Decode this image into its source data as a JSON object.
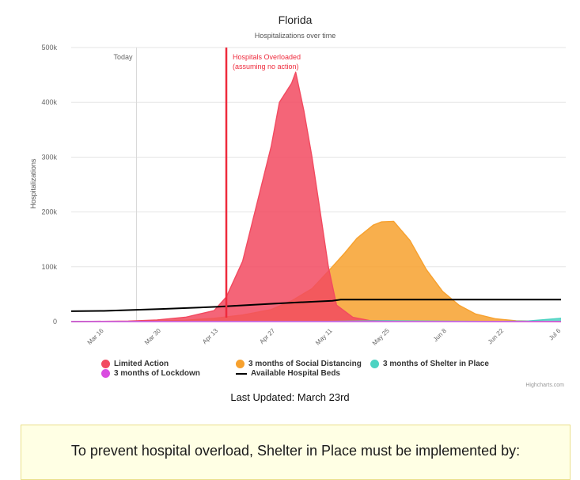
{
  "colors": {
    "limited_action": "#f24a60",
    "social_distancing": "#f7a12e",
    "shelter_in_place": "#4cd3c2",
    "lockdown": "#d94de0",
    "hospital_beds": "#000000",
    "overload_line": "#ee2a3c",
    "today_line": "#d8d8d8",
    "grid": "#e6e6e6"
  },
  "chart_data": {
    "type": "area",
    "title": "Florida",
    "subtitle": "Hospitalizations over time",
    "ylabel": "Hospitalizations",
    "xlabel": "",
    "x_dates": [
      "2020-03-08",
      "2020-03-15",
      "2020-03-22",
      "2020-03-29",
      "2020-04-05",
      "2020-04-12",
      "2020-04-19",
      "2020-04-26",
      "2020-05-03",
      "2020-05-10",
      "2020-05-17",
      "2020-05-24",
      "2020-05-31",
      "2020-06-07",
      "2020-06-14",
      "2020-06-21",
      "2020-06-28",
      "2020-07-05"
    ],
    "x_ticks": [
      "Mar 16",
      "Mar 30",
      "Apr 13",
      "Apr 27",
      "May 11",
      "May 25",
      "Jun 8",
      "Jun 22",
      "Jul 6"
    ],
    "x_tick_dates": [
      "2020-03-16",
      "2020-03-30",
      "2020-04-13",
      "2020-04-27",
      "2020-05-11",
      "2020-05-25",
      "2020-06-08",
      "2020-06-22",
      "2020-07-06"
    ],
    "x_range": [
      "2020-03-08",
      "2020-07-06"
    ],
    "y_ticks": [
      "0",
      "100k",
      "200k",
      "300k",
      "400k",
      "500k"
    ],
    "ylim": [
      0,
      500000
    ],
    "grid": true,
    "series": [
      {
        "name": "3 months of Social Distancing",
        "type": "area",
        "color_key": "social_distancing",
        "points": [
          [
            "2020-03-08",
            0
          ],
          [
            "2020-03-22",
            500
          ],
          [
            "2020-04-05",
            2500
          ],
          [
            "2020-04-12",
            6000
          ],
          [
            "2020-04-19",
            12000
          ],
          [
            "2020-04-26",
            22000
          ],
          [
            "2020-05-01",
            38000
          ],
          [
            "2020-05-06",
            60000
          ],
          [
            "2020-05-10",
            92000
          ],
          [
            "2020-05-14",
            125000
          ],
          [
            "2020-05-17",
            152000
          ],
          [
            "2020-05-21",
            176000
          ],
          [
            "2020-05-23",
            182000
          ],
          [
            "2020-05-26",
            183000
          ],
          [
            "2020-05-30",
            148000
          ],
          [
            "2020-06-03",
            95000
          ],
          [
            "2020-06-07",
            55000
          ],
          [
            "2020-06-11",
            30000
          ],
          [
            "2020-06-15",
            14000
          ],
          [
            "2020-06-20",
            5000
          ],
          [
            "2020-06-25",
            1500
          ],
          [
            "2020-07-06",
            0
          ]
        ]
      },
      {
        "name": "Limited Action",
        "type": "area",
        "color_key": "limited_action",
        "points": [
          [
            "2020-03-08",
            0
          ],
          [
            "2020-03-22",
            1000
          ],
          [
            "2020-03-29",
            3000
          ],
          [
            "2020-04-05",
            8000
          ],
          [
            "2020-04-12",
            20000
          ],
          [
            "2020-04-15",
            45000
          ],
          [
            "2020-04-19",
            110000
          ],
          [
            "2020-04-23",
            230000
          ],
          [
            "2020-04-26",
            320000
          ],
          [
            "2020-04-28",
            400000
          ],
          [
            "2020-05-01",
            435000
          ],
          [
            "2020-05-02",
            455000
          ],
          [
            "2020-05-04",
            385000
          ],
          [
            "2020-05-06",
            300000
          ],
          [
            "2020-05-08",
            200000
          ],
          [
            "2020-05-10",
            100000
          ],
          [
            "2020-05-12",
            30000
          ],
          [
            "2020-05-16",
            8000
          ],
          [
            "2020-05-20",
            2000
          ],
          [
            "2020-06-01",
            500
          ],
          [
            "2020-07-06",
            0
          ]
        ]
      },
      {
        "name": "3 months of Shelter in Place",
        "type": "area",
        "color_key": "shelter_in_place",
        "points": [
          [
            "2020-03-08",
            0
          ],
          [
            "2020-05-10",
            400
          ],
          [
            "2020-05-24",
            1500
          ],
          [
            "2020-06-07",
            800
          ],
          [
            "2020-06-21",
            300
          ],
          [
            "2020-06-28",
            1200
          ],
          [
            "2020-07-06",
            6000
          ]
        ]
      },
      {
        "name": "3 months of Lockdown",
        "type": "area",
        "color_key": "lockdown",
        "points": [
          [
            "2020-03-08",
            0
          ],
          [
            "2020-07-06",
            0
          ]
        ]
      },
      {
        "name": "Available Hospital Beds",
        "type": "line",
        "color_key": "hospital_beds",
        "points": [
          [
            "2020-03-08",
            19000
          ],
          [
            "2020-03-16",
            19500
          ],
          [
            "2020-03-30",
            23000
          ],
          [
            "2020-04-13",
            27000
          ],
          [
            "2020-04-27",
            33000
          ],
          [
            "2020-05-11",
            38000
          ],
          [
            "2020-05-13",
            40000
          ],
          [
            "2020-05-25",
            40000
          ],
          [
            "2020-06-08",
            40000
          ],
          [
            "2020-06-22",
            40000
          ],
          [
            "2020-07-06",
            40000
          ]
        ]
      }
    ],
    "annotations": [
      {
        "label": "Today",
        "date": "2020-03-24"
      },
      {
        "label_lines": [
          "Hospitals Overloaded",
          "(assuming no action)"
        ],
        "date": "2020-04-15"
      }
    ]
  },
  "legend": {
    "items": [
      {
        "label": "Limited Action",
        "color_key": "limited_action",
        "shape": "circle"
      },
      {
        "label": "3 months of Social Distancing",
        "color_key": "social_distancing",
        "shape": "circle"
      },
      {
        "label": "3 months of Shelter in Place",
        "color_key": "shelter_in_place",
        "shape": "circle"
      },
      {
        "label": "3 months of Lockdown",
        "color_key": "lockdown",
        "shape": "circle"
      },
      {
        "label": "Available Hospital Beds",
        "color_key": "hospital_beds",
        "shape": "line"
      }
    ]
  },
  "credits": "Highcharts.com",
  "last_updated": "Last Updated: March 23rd",
  "notice": {
    "text": "To prevent hospital overload, Shelter in Place must be implemented by:"
  }
}
